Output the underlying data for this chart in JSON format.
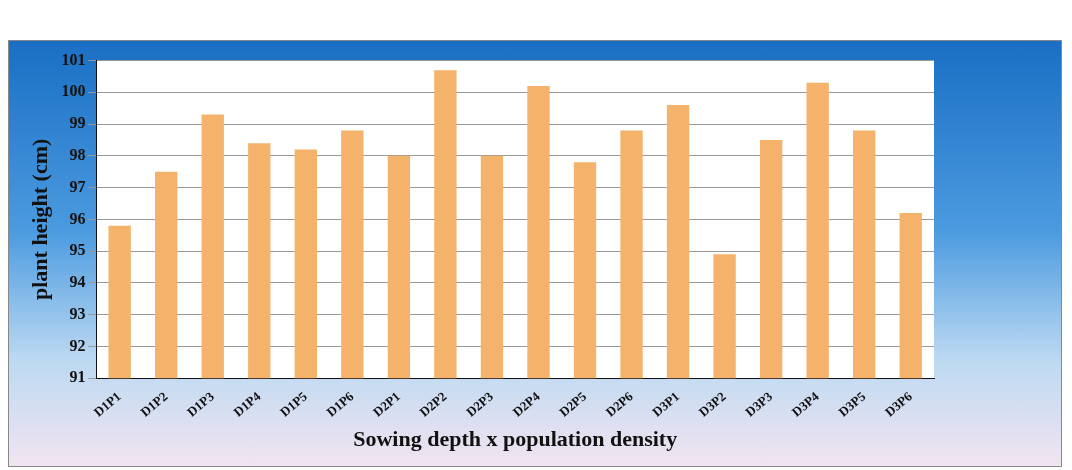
{
  "chart_data": {
    "type": "bar",
    "xlabel": "Sowing depth x population density",
    "ylabel": "plant height (cm)",
    "categories": [
      "D1P1",
      "D1P2",
      "D1P3",
      "D1P4",
      "D1P5",
      "D1P6",
      "D2P1",
      "D2P2",
      "D2P3",
      "D2P4",
      "D2P5",
      "D2P6",
      "D3P1",
      "D3P2",
      "D3P3",
      "D3P4",
      "D3P5",
      "D3P6"
    ],
    "values": [
      95.8,
      97.5,
      99.3,
      98.4,
      98.2,
      98.8,
      98.0,
      100.7,
      98.0,
      100.2,
      97.8,
      98.8,
      99.6,
      94.9,
      98.5,
      100.3,
      98.8,
      96.2
    ],
    "color": "#f4b26a",
    "ylim": [
      91,
      101
    ],
    "yticks": [
      91,
      92,
      93,
      94,
      95,
      96,
      97,
      98,
      99,
      100,
      101
    ],
    "grid": "y"
  }
}
